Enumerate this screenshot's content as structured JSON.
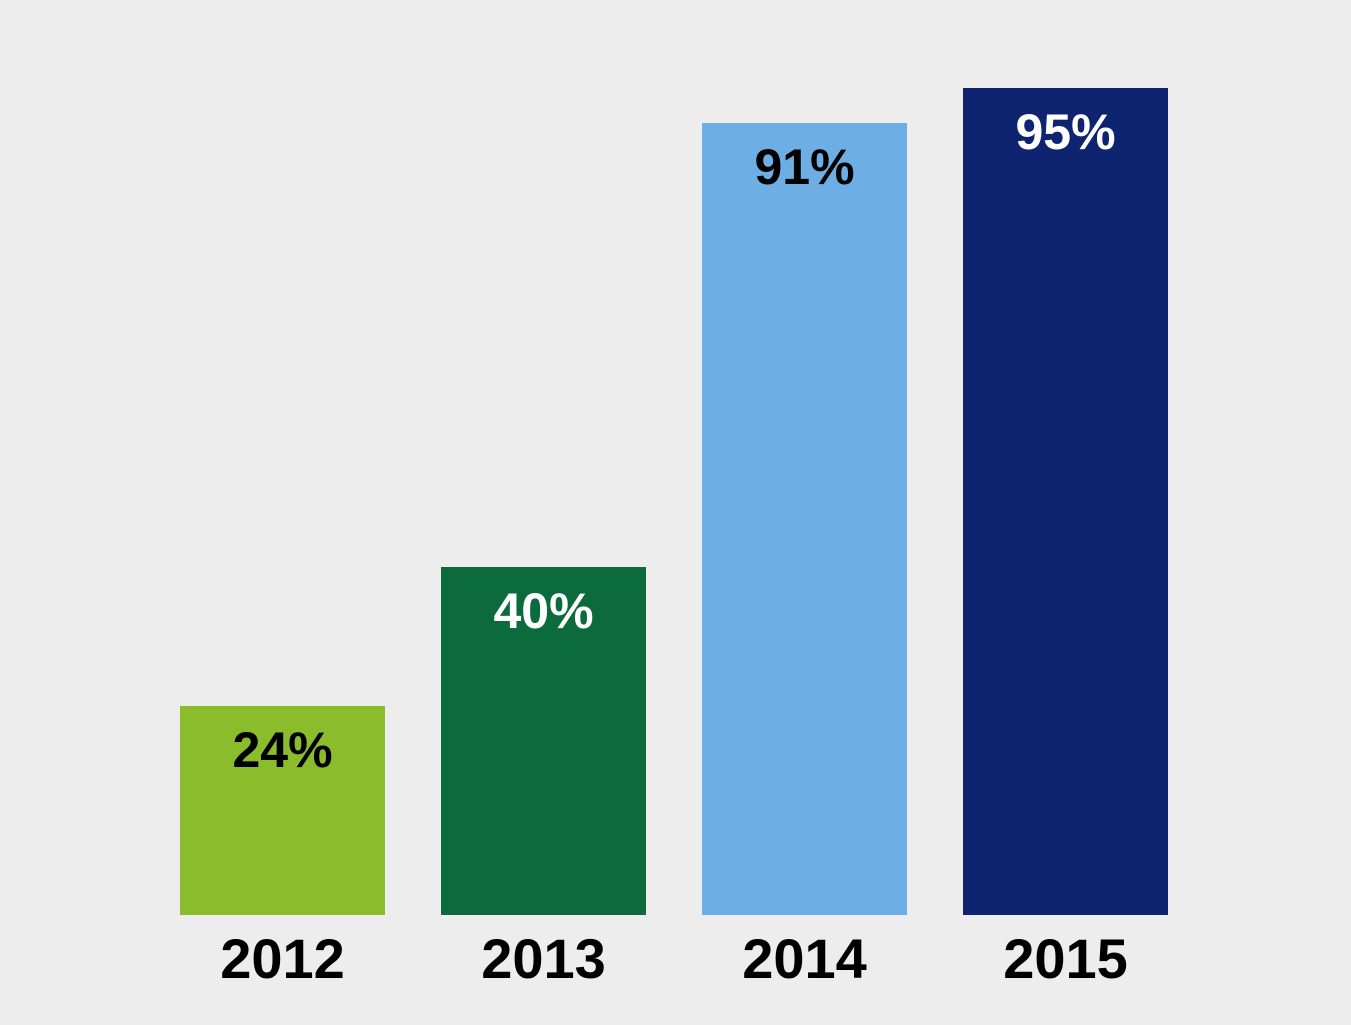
{
  "chart_data": {
    "type": "bar",
    "title": "",
    "xlabel": "",
    "ylabel": "",
    "categories": [
      "2012",
      "2013",
      "2014",
      "2015"
    ],
    "values": [
      24,
      40,
      91,
      95
    ],
    "value_labels": [
      "24%",
      "40%",
      "91%",
      "95%"
    ],
    "bar_colors": [
      "#8BBC2B",
      "#0B6B3C",
      "#6DAEE4",
      "#0F2470"
    ],
    "value_label_colors": [
      "#000000",
      "#FFFFFF",
      "#000000",
      "#FFFFFF"
    ],
    "background_color": "#EDEDED",
    "ylim": [
      0,
      100
    ],
    "grid": false,
    "legend": false,
    "value_label_position": "inside-top",
    "axis_lines": "none"
  }
}
